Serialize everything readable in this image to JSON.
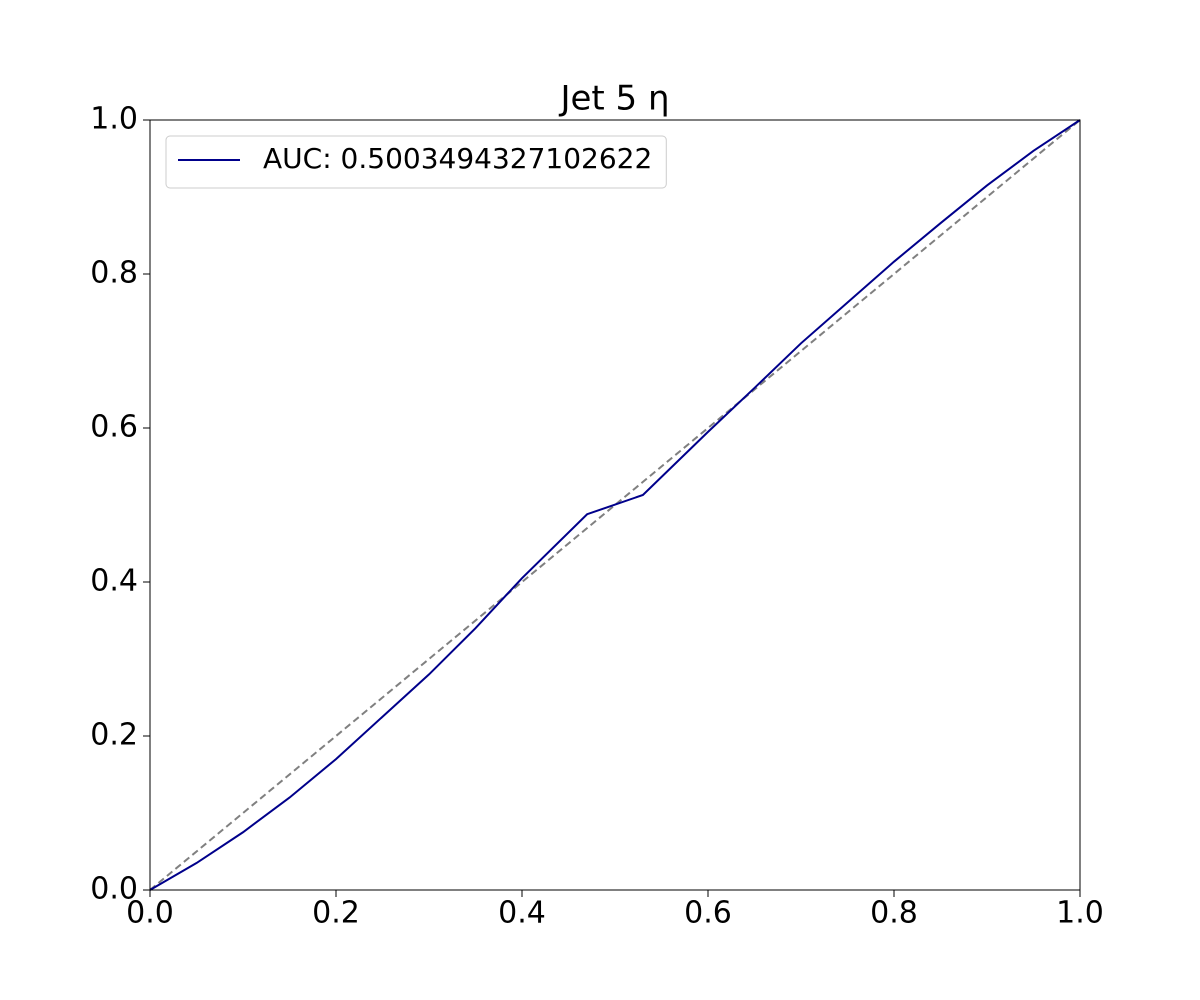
{
  "chart_data": {
    "type": "line",
    "title": "Jet 5 η",
    "x": [
      0,
      0.05,
      0.1,
      0.15,
      0.2,
      0.25,
      0.3,
      0.35,
      0.4,
      0.47,
      0.53,
      0.6,
      0.65,
      0.7,
      0.75,
      0.8,
      0.85,
      0.9,
      0.95,
      1
    ],
    "series": [
      {
        "name": "AUC: 0.5003494327102622",
        "color": "#00008b",
        "values": [
          0,
          0.035,
          0.075,
          0.12,
          0.17,
          0.225,
          0.28,
          0.34,
          0.405,
          0.488,
          0.513,
          0.595,
          0.652,
          0.71,
          0.763,
          0.816,
          0.866,
          0.915,
          0.96,
          1
        ]
      }
    ],
    "reference_line": {
      "x": [
        0,
        1
      ],
      "values": [
        0,
        1
      ],
      "color": "#808080",
      "style": "dashed"
    },
    "xlim": [
      0,
      1
    ],
    "ylim": [
      0,
      1
    ],
    "xticks": [
      {
        "value": 0,
        "label": "0.0"
      },
      0.2,
      0.4,
      0.6,
      0.8,
      {
        "value": 1,
        "label": "1.0"
      }
    ],
    "yticks": [
      {
        "value": 0,
        "label": "0.0"
      },
      0.2,
      0.4,
      0.6,
      0.8,
      {
        "value": 1,
        "label": "1.0"
      }
    ],
    "grid": false,
    "legend": "upper left"
  }
}
